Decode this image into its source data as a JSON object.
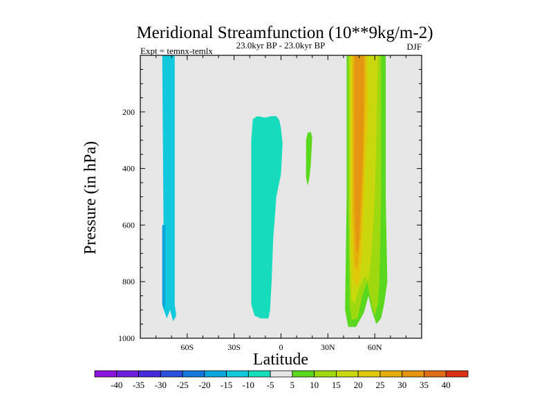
{
  "chart_data": {
    "type": "contour",
    "title": "Meridional Streamfunction (10**9kg/m-2)",
    "subtitle_left": "Expt = temnx-temlx",
    "subtitle_center": "23.0kyr BP - 23.0kyr BP",
    "subtitle_right": "DJF",
    "xlabel": "Latitude",
    "ylabel": "Pressure (in hPa)",
    "xlim": [
      -90,
      90
    ],
    "ylim": [
      1000,
      0
    ],
    "x_ticks": [
      {
        "value": -60,
        "label": "60S"
      },
      {
        "value": -30,
        "label": "30S"
      },
      {
        "value": 0,
        "label": "0"
      },
      {
        "value": 30,
        "label": "30N"
      },
      {
        "value": 60,
        "label": "60N"
      }
    ],
    "y_ticks": [
      {
        "value": 200,
        "label": "200"
      },
      {
        "value": 400,
        "label": "400"
      },
      {
        "value": 600,
        "label": "600"
      },
      {
        "value": 800,
        "label": "800"
      },
      {
        "value": 1000,
        "label": "1000"
      }
    ],
    "background_color": "#e6e6e6",
    "regions": [
      {
        "name": "south-polar-negative-cell",
        "level": -10,
        "color": "#11c8dc",
        "points": [
          [
            -76,
            0
          ],
          [
            -68,
            0
          ],
          [
            -68,
            880
          ],
          [
            -67,
            920
          ],
          [
            -69,
            940
          ],
          [
            -71,
            900
          ],
          [
            -73,
            930
          ],
          [
            -75,
            900
          ],
          [
            -75,
            700
          ]
        ]
      },
      {
        "name": "south-polar-negative-core",
        "level": -15,
        "color": "#0aa6dc",
        "points": [
          [
            -76,
            600
          ],
          [
            -74,
            600
          ],
          [
            -74,
            880
          ],
          [
            -75,
            900
          ],
          [
            -76,
            880
          ]
        ]
      },
      {
        "name": "tropical-negative-cell",
        "level": -5,
        "color": "#14dcbc",
        "points": [
          [
            -18,
            225
          ],
          [
            -15,
            215
          ],
          [
            -10,
            220
          ],
          [
            -6,
            215
          ],
          [
            -3,
            215
          ],
          [
            -1,
            230
          ],
          [
            0,
            260
          ],
          [
            1,
            310
          ],
          [
            0,
            420
          ],
          [
            -3,
            500
          ],
          [
            -5,
            650
          ],
          [
            -6,
            800
          ],
          [
            -7,
            900
          ],
          [
            -8,
            930
          ],
          [
            -13,
            930
          ],
          [
            -17,
            920
          ],
          [
            -19,
            880
          ],
          [
            -19,
            560
          ],
          [
            -19,
            300
          ]
        ]
      },
      {
        "name": "subtropical-positive-patch",
        "level": 5,
        "color": "#5ad81e",
        "points": [
          [
            17,
            275
          ],
          [
            19,
            270
          ],
          [
            20,
            290
          ],
          [
            19,
            390
          ],
          [
            18,
            440
          ],
          [
            17,
            460
          ],
          [
            16,
            430
          ],
          [
            16,
            300
          ]
        ]
      },
      {
        "name": "northern-cell-outer",
        "level": 5,
        "color": "#5ad81e",
        "points": [
          [
            42,
            0
          ],
          [
            67,
            0
          ],
          [
            67,
            500
          ],
          [
            68,
            800
          ],
          [
            66,
            880
          ],
          [
            64,
            930
          ],
          [
            61,
            950
          ],
          [
            58,
            900
          ],
          [
            56,
            850
          ],
          [
            53,
            910
          ],
          [
            48,
            960
          ],
          [
            43,
            960
          ],
          [
            41,
            900
          ],
          [
            42,
            500
          ]
        ]
      },
      {
        "name": "northern-cell-10",
        "level": 10,
        "color": "#9ed80e",
        "points": [
          [
            43,
            0
          ],
          [
            64,
            0
          ],
          [
            64,
            500
          ],
          [
            63,
            800
          ],
          [
            62,
            880
          ],
          [
            60,
            920
          ],
          [
            58,
            880
          ],
          [
            55,
            800
          ],
          [
            52,
            850
          ],
          [
            49,
            930
          ],
          [
            45,
            935
          ],
          [
            44,
            880
          ],
          [
            43,
            500
          ]
        ]
      },
      {
        "name": "northern-cell-15",
        "level": 15,
        "color": "#c8d80c",
        "points": [
          [
            44,
            0
          ],
          [
            62,
            0
          ],
          [
            61,
            300
          ],
          [
            60,
            500
          ],
          [
            58,
            700
          ],
          [
            56,
            800
          ],
          [
            54,
            780
          ],
          [
            50,
            820
          ],
          [
            47,
            880
          ],
          [
            45,
            860
          ],
          [
            44,
            700
          ]
        ]
      },
      {
        "name": "northern-cell-20",
        "level": 20,
        "color": "#e0c808",
        "points": [
          [
            45,
            0
          ],
          [
            55,
            0
          ],
          [
            56,
            200
          ],
          [
            54,
            400
          ],
          [
            53,
            550
          ],
          [
            52,
            700
          ],
          [
            50,
            800
          ],
          [
            48,
            820
          ],
          [
            46,
            790
          ],
          [
            45,
            600
          ]
        ]
      },
      {
        "name": "northern-cell-25",
        "level": 25,
        "color": "#e4ae0a",
        "points": [
          [
            46,
            0
          ],
          [
            54,
            0
          ],
          [
            54,
            150
          ],
          [
            53,
            400
          ],
          [
            52,
            520
          ],
          [
            51,
            650
          ],
          [
            49,
            760
          ],
          [
            47,
            740
          ],
          [
            46,
            550
          ]
        ]
      },
      {
        "name": "northern-cell-30",
        "level": 30,
        "color": "#e39410",
        "points": [
          [
            47,
            0
          ],
          [
            53,
            0
          ],
          [
            53,
            200
          ],
          [
            52,
            400
          ],
          [
            51,
            520
          ],
          [
            50,
            650
          ],
          [
            49,
            700
          ],
          [
            48,
            680
          ],
          [
            47,
            500
          ]
        ]
      }
    ],
    "colorbar": {
      "labels": [
        "-40",
        "-35",
        "-30",
        "-25",
        "-20",
        "-15",
        "-10",
        "-5",
        "5",
        "10",
        "15",
        "20",
        "25",
        "30",
        "35",
        "40"
      ],
      "colors": [
        "#8c14dc",
        "#6e1edc",
        "#4a28dc",
        "#2a50dc",
        "#1478dc",
        "#0aa6dc",
        "#11c8dc",
        "#14dcbc",
        "#e6e6e6",
        "#5ad81e",
        "#9ed80e",
        "#c8d80c",
        "#e0c808",
        "#e4ae0a",
        "#e39410",
        "#e06e14",
        "#dc3214"
      ]
    }
  }
}
